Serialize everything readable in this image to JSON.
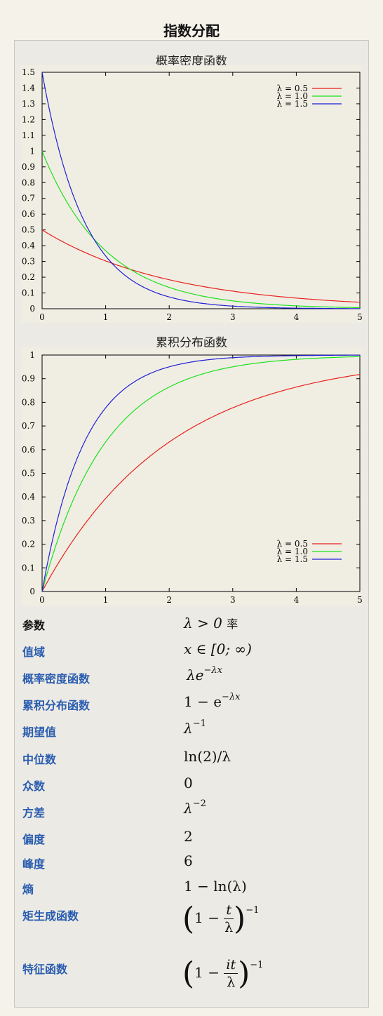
{
  "page_title": "指数分配",
  "colors": {
    "lambda_0_5": "#e8201c",
    "lambda_1_0": "#1de01d",
    "lambda_1_5": "#1f1fd6",
    "label_blue": "#2a5db0"
  },
  "chart_data": [
    {
      "type": "line",
      "title": "概率密度函数",
      "xlabel": "",
      "ylabel": "",
      "xlim": [
        0,
        5
      ],
      "ylim": [
        0,
        1.5
      ],
      "x_ticks": [
        "0",
        "1",
        "2",
        "3",
        "4",
        "5"
      ],
      "y_ticks": [
        "0",
        "0.1",
        "0.2",
        "0.3",
        "0.4",
        "0.5",
        "0.6",
        "0.7",
        "0.8",
        "0.9",
        "1",
        "1.1",
        "1.2",
        "1.3",
        "1.4",
        "1.5"
      ],
      "legend_position": "top-right",
      "grid": false,
      "series": [
        {
          "name": "λ = 0.5",
          "color": "#e8201c",
          "x": [
            0,
            0.5,
            1,
            1.5,
            2,
            2.5,
            3,
            3.5,
            4,
            4.5,
            5
          ],
          "y": [
            0.5,
            0.389,
            0.303,
            0.236,
            0.184,
            0.143,
            0.112,
            0.087,
            0.068,
            0.053,
            0.041
          ]
        },
        {
          "name": "λ = 1.0",
          "color": "#1de01d",
          "x": [
            0,
            0.5,
            1,
            1.5,
            2,
            2.5,
            3,
            3.5,
            4,
            4.5,
            5
          ],
          "y": [
            1.0,
            0.607,
            0.368,
            0.223,
            0.135,
            0.082,
            0.05,
            0.03,
            0.018,
            0.011,
            0.007
          ]
        },
        {
          "name": "λ = 1.5",
          "color": "#1f1fd6",
          "x": [
            0,
            0.5,
            1,
            1.5,
            2,
            2.5,
            3,
            3.5,
            4,
            4.5,
            5
          ],
          "y": [
            1.5,
            0.709,
            0.335,
            0.158,
            0.075,
            0.035,
            0.017,
            0.008,
            0.004,
            0.002,
            0.001
          ]
        }
      ]
    },
    {
      "type": "line",
      "title": "累积分布函数",
      "xlabel": "",
      "ylabel": "",
      "xlim": [
        0,
        5
      ],
      "ylim": [
        0,
        1
      ],
      "x_ticks": [
        "0",
        "1",
        "2",
        "3",
        "4",
        "5"
      ],
      "y_ticks": [
        "0",
        "0.1",
        "0.2",
        "0.3",
        "0.4",
        "0.5",
        "0.6",
        "0.7",
        "0.8",
        "0.9",
        "1"
      ],
      "legend_position": "bottom-right",
      "grid": false,
      "series": [
        {
          "name": "λ = 0.5",
          "color": "#e8201c",
          "x": [
            0,
            0.5,
            1,
            1.5,
            2,
            2.5,
            3,
            3.5,
            4,
            4.5,
            5
          ],
          "y": [
            0,
            0.221,
            0.393,
            0.528,
            0.632,
            0.713,
            0.777,
            0.826,
            0.865,
            0.895,
            0.918
          ]
        },
        {
          "name": "λ = 1.0",
          "color": "#1de01d",
          "x": [
            0,
            0.5,
            1,
            1.5,
            2,
            2.5,
            3,
            3.5,
            4,
            4.5,
            5
          ],
          "y": [
            0,
            0.393,
            0.632,
            0.777,
            0.865,
            0.918,
            0.95,
            0.97,
            0.982,
            0.989,
            0.993
          ]
        },
        {
          "name": "λ = 1.5",
          "color": "#1f1fd6",
          "x": [
            0,
            0.5,
            1,
            1.5,
            2,
            2.5,
            3,
            3.5,
            4,
            4.5,
            5
          ],
          "y": [
            0,
            0.528,
            0.777,
            0.895,
            0.95,
            0.976,
            0.989,
            0.995,
            0.998,
            0.999,
            0.999
          ]
        }
      ]
    }
  ],
  "properties": [
    {
      "label": "参数",
      "value": "λ > 0 率"
    },
    {
      "label": "值域",
      "value": "x ∈ [0; ∞)"
    },
    {
      "label": "概率密度函数",
      "value": "λe^(−λx)"
    },
    {
      "label": "累积分布函数",
      "value": "1 − e^(−λx)"
    },
    {
      "label": "期望值",
      "value": "λ^(−1)"
    },
    {
      "label": "中位数",
      "value": "ln(2)/λ"
    },
    {
      "label": "众数",
      "value": "0"
    },
    {
      "label": "方差",
      "value": "λ^(−2)"
    },
    {
      "label": "偏度",
      "value": "2"
    },
    {
      "label": "峰度",
      "value": "6"
    },
    {
      "label": "熵",
      "value": "1 − ln(λ)"
    },
    {
      "label": "矩生成函数",
      "value": "(1 − t/λ)^(−1)"
    },
    {
      "label": "特征函数",
      "value": "(1 − it/λ)^(−1)"
    }
  ],
  "formula_parts": {
    "p0": {
      "main": "λ > 0",
      "suffix": "率"
    },
    "p1": {
      "main": "x ∈ [0; ∞)"
    },
    "p2": {
      "base": "λe",
      "sup": "−λx"
    },
    "p3": {
      "base": "1 − e",
      "sup": "−λx"
    },
    "p4": {
      "base": "λ",
      "sup": "−1"
    },
    "p5": {
      "main": "ln(2)/λ"
    },
    "p6": {
      "main": "0"
    },
    "p7": {
      "base": "λ",
      "sup": "−2"
    },
    "p8": {
      "main": "2"
    },
    "p9": {
      "main": "6"
    },
    "p10": {
      "main": "1 − ln(λ)"
    },
    "p11": {
      "lead": "1 −",
      "num": "t",
      "den": "λ",
      "sup": "−1"
    },
    "p12": {
      "lead": "1 −",
      "num": "it",
      "den": "λ",
      "sup": "−1"
    }
  }
}
